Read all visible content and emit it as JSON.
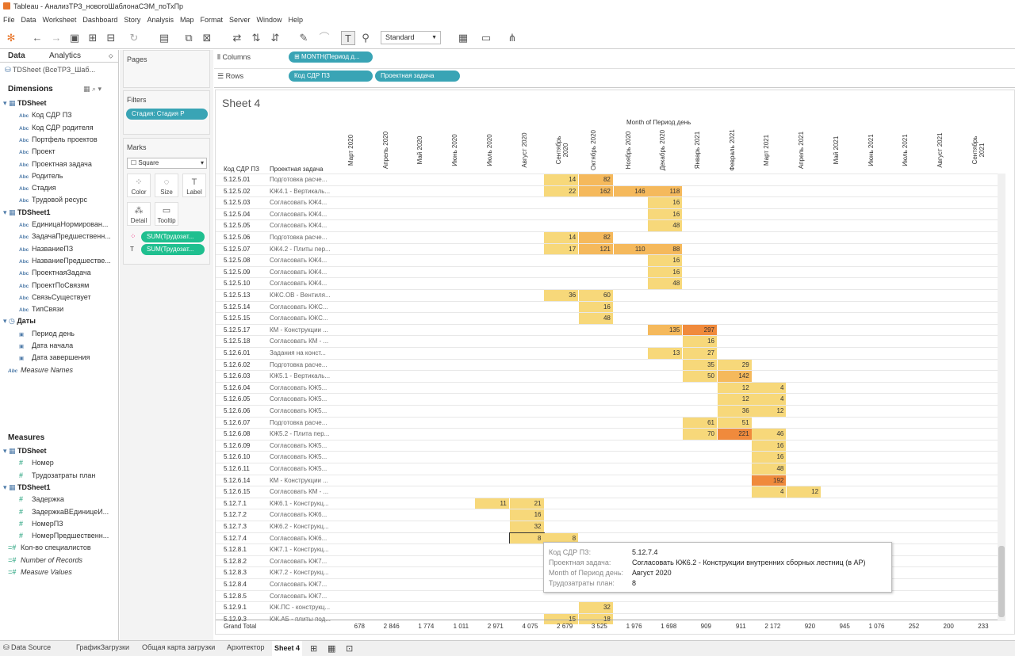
{
  "window": {
    "title": "Tableau - АнализТРЗ_новогоШаблонаСЭМ_поТхПр"
  },
  "menu": [
    "File",
    "Data",
    "Worksheet",
    "Dashboard",
    "Story",
    "Analysis",
    "Map",
    "Format",
    "Server",
    "Window",
    "Help"
  ],
  "toolbar": {
    "fit": "Standard"
  },
  "leftpane": {
    "tab_data": "Data",
    "tab_analytics": "Analytics",
    "source": "TDSheet (ВсеТРЗ_Шаб...",
    "dimensions_title": "Dimensions",
    "dim_groups": [
      {
        "name": "TDSheet",
        "fields": [
          "Код СДР ПЗ",
          "Код СДР родителя",
          "Портфель проектов",
          "Проект",
          "Проектная задача",
          "Родитель",
          "Стадия",
          "Трудовой ресурс"
        ]
      },
      {
        "name": "TDSheet1",
        "fields": [
          "ЕдиницаНормирован...",
          "ЗадачаПредшественн...",
          "НазваниеПЗ",
          "НазваниеПредшестве...",
          "ПроектнаяЗадача",
          "ПроектПоСвязям",
          "СвязьСуществует",
          "ТипСвязи"
        ]
      },
      {
        "name": "Даты",
        "fields": [
          "Период день",
          "Дата начала",
          "Дата завершения"
        ]
      }
    ],
    "measure_names": "Measure Names",
    "measures_title": "Measures",
    "meas_groups": [
      {
        "name": "TDSheet",
        "fields": [
          "Номер",
          "Трудозатраты план"
        ]
      },
      {
        "name": "TDSheet1",
        "fields": [
          "Задержка",
          "ЗадержкаВЕдиницеИ...",
          "НомерПЗ",
          "НомерПредшественн..."
        ]
      }
    ],
    "meas_extra": [
      "Кол-во специалистов",
      "Number of Records",
      "Measure Values"
    ]
  },
  "midpane": {
    "pages": "Pages",
    "filters": "Filters",
    "filter_pill": "Стадия: Стадия Р",
    "marks": "Marks",
    "mark_type": "Square",
    "btn_color": "Color",
    "btn_size": "Size",
    "btn_label": "Label",
    "btn_detail": "Detail",
    "btn_tooltip": "Tooltip",
    "mark_pill1": "SUM(Трудозат...",
    "mark_pill2": "SUM(Трудозат..."
  },
  "shelves": {
    "columns": "Columns",
    "rows": "Rows",
    "col_pill": "MONTH(Период д...",
    "row_pill1": "Код СДР ПЗ",
    "row_pill2": "Проектная задача"
  },
  "view": {
    "sheet_title": "Sheet 4",
    "month_header": "Month of Период день",
    "row_hdr1": "Код СДР ПЗ",
    "row_hdr2": "Проектная задача",
    "months": [
      "Март 2020",
      "Апрель 2020",
      "Май 2020",
      "Июнь 2020",
      "Июль 2020",
      "Август 2020",
      "Сентябрь 2020",
      "Октябрь 2020",
      "Ноябрь 2020",
      "Декабрь 2020",
      "Январь 2021",
      "Февраль 2021",
      "Март 2021",
      "Апрель 2021",
      "Май 2021",
      "Июнь 2021",
      "Июль 2021",
      "Август 2021",
      "Сентябрь 2021"
    ],
    "rows": [
      {
        "code": "5.12.5.01",
        "task": "Подготовка расче...",
        "cells": {
          "6": "14",
          "7": "82"
        }
      },
      {
        "code": "5.12.5.02",
        "task": "КЖ4.1 - Вертикаль...",
        "cells": {
          "6": "22",
          "7": "162",
          "8": "146",
          "9": "118"
        }
      },
      {
        "code": "5.12.5.03",
        "task": "Согласовать КЖ4...",
        "cells": {
          "9": "16"
        }
      },
      {
        "code": "5.12.5.04",
        "task": "Согласовать КЖ4...",
        "cells": {
          "9": "16"
        }
      },
      {
        "code": "5.12.5.05",
        "task": "Согласовать КЖ4...",
        "cells": {
          "9": "48"
        }
      },
      {
        "code": "5.12.5.06",
        "task": "Подготовка расче...",
        "cells": {
          "6": "14",
          "7": "82"
        }
      },
      {
        "code": "5.12.5.07",
        "task": "КЖ4.2 - Плиты пер...",
        "cells": {
          "6": "17",
          "7": "121",
          "8": "110",
          "9": "88"
        }
      },
      {
        "code": "5.12.5.08",
        "task": "Согласовать КЖ4...",
        "cells": {
          "9": "16"
        }
      },
      {
        "code": "5.12.5.09",
        "task": "Согласовать КЖ4...",
        "cells": {
          "9": "16"
        }
      },
      {
        "code": "5.12.5.10",
        "task": "Согласовать КЖ4...",
        "cells": {
          "9": "48"
        }
      },
      {
        "code": "5.12.5.13",
        "task": "КЖС.ОВ - Вентиля...",
        "cells": {
          "6": "36",
          "7": "60"
        }
      },
      {
        "code": "5.12.5.14",
        "task": "Согласовать КЖС...",
        "cells": {
          "7": "16"
        }
      },
      {
        "code": "5.12.5.15",
        "task": "Согласовать КЖС...",
        "cells": {
          "7": "48"
        }
      },
      {
        "code": "5.12.5.17",
        "task": "КМ - Конструкции ...",
        "cells": {
          "9": "135",
          "10": "297"
        }
      },
      {
        "code": "5.12.5.18",
        "task": "Согласовать КМ - ...",
        "cells": {
          "10": "16"
        }
      },
      {
        "code": "5.12.6.01",
        "task": "Задания на конст...",
        "cells": {
          "9": "13",
          "10": "27"
        }
      },
      {
        "code": "5.12.6.02",
        "task": "Подготовка расче...",
        "cells": {
          "10": "35",
          "11": "29"
        }
      },
      {
        "code": "5.12.6.03",
        "task": "КЖ5.1 - Вертикаль...",
        "cells": {
          "10": "50",
          "11": "142"
        }
      },
      {
        "code": "5.12.6.04",
        "task": "Согласовать КЖ5...",
        "cells": {
          "11": "12",
          "12": "4"
        }
      },
      {
        "code": "5.12.6.05",
        "task": "Согласовать КЖ5...",
        "cells": {
          "11": "12",
          "12": "4"
        }
      },
      {
        "code": "5.12.6.06",
        "task": "Согласовать КЖ5...",
        "cells": {
          "11": "36",
          "12": "12"
        }
      },
      {
        "code": "5.12.6.07",
        "task": "Подготовка расче...",
        "cells": {
          "10": "61",
          "11": "51"
        }
      },
      {
        "code": "5.12.6.08",
        "task": "КЖ5.2 - Плита пер...",
        "cells": {
          "10": "70",
          "11": "221",
          "12": "46"
        }
      },
      {
        "code": "5.12.6.09",
        "task": "Согласовать КЖ5...",
        "cells": {
          "12": "16"
        }
      },
      {
        "code": "5.12.6.10",
        "task": "Согласовать КЖ5...",
        "cells": {
          "12": "16"
        }
      },
      {
        "code": "5.12.6.11",
        "task": "Согласовать КЖ5...",
        "cells": {
          "12": "48"
        }
      },
      {
        "code": "5.12.6.14",
        "task": "КМ - Конструкции ...",
        "cells": {
          "12": "192"
        }
      },
      {
        "code": "5.12.6.15",
        "task": "Согласовать КМ - ...",
        "cells": {
          "12": "4",
          "13": "12"
        }
      },
      {
        "code": "5.12.7.1",
        "task": "КЖ6.1 - Конструкц...",
        "cells": {
          "4": "11",
          "5": "21"
        }
      },
      {
        "code": "5.12.7.2",
        "task": "Согласовать КЖ6...",
        "cells": {
          "5": "16"
        }
      },
      {
        "code": "5.12.7.3",
        "task": "КЖ6.2 - Конструкц...",
        "cells": {
          "5": "32"
        }
      },
      {
        "code": "5.12.7.4",
        "task": "Согласовать КЖ6...",
        "cells": {
          "5": "8",
          "6": "8"
        }
      },
      {
        "code": "5.12.8.1",
        "task": "КЖ7.1 - Конструкц...",
        "cells": {}
      },
      {
        "code": "5.12.8.2",
        "task": "Согласовать КЖ7...",
        "cells": {}
      },
      {
        "code": "5.12.8.3",
        "task": "КЖ7.2 - Конструкц...",
        "cells": {}
      },
      {
        "code": "5.12.8.4",
        "task": "Согласовать КЖ7...",
        "cells": {}
      },
      {
        "code": "5.12.8.5",
        "task": "Согласовать КЖ7...",
        "cells": {}
      },
      {
        "code": "5.12.9.1",
        "task": "КЖ.ПС - конструкц...",
        "cells": {
          "7": "32"
        }
      },
      {
        "code": "5.12.9.3",
        "task": "КЖ.АБ - плиты под...",
        "cells": {
          "6": "15",
          "7": "18"
        }
      }
    ],
    "grand_total_label": "Grand Total",
    "grand_totals": [
      "678",
      "2 846",
      "1 774",
      "1 011",
      "2 971",
      "4 075",
      "2 679",
      "3 525",
      "1 976",
      "1 698",
      "909",
      "911",
      "2 172",
      "920",
      "945",
      "1 076",
      "252",
      "200",
      "233"
    ]
  },
  "tooltip": {
    "k1": "Код СДР ПЗ:",
    "v1": "5.12.7.4",
    "k2": "Проектная задача:",
    "v2": "Согласовать КЖ6.2 - Конструкции внутренних сборных лестниц (в АР)",
    "k3": "Month of Период день:",
    "v3": "Август 2020",
    "k4": "Трудозатраты план:",
    "v4": "8"
  },
  "bottom_tabs": [
    "Data Source",
    "ГрафикЗагрузки",
    "Общая карта загрузки",
    "Архитектор",
    "Sheet 4"
  ],
  "colors": {
    "low": "#f7d87a",
    "mid": "#f5b95c",
    "high": "#f08a3c",
    "pill": "#39a4b5",
    "pill_green": "#1fbf8f"
  }
}
